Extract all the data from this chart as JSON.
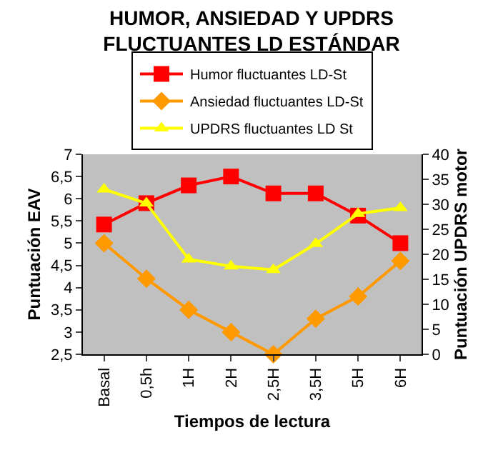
{
  "chart_data": {
    "type": "line",
    "title": "HUMOR, ANSIEDAD Y UPDRS\nFLUCTUANTES LD ESTÁNDAR",
    "xlabel": "Tiempos de lectura",
    "ylabel": "Puntuación EAV",
    "y2label": "Puntuación UPDRS motor",
    "categories": [
      "Basal",
      "0,5h",
      "1H",
      "2H",
      "2,5H",
      "3,5H",
      "5H",
      "6H"
    ],
    "series": [
      {
        "name": "Humor fluctuantes LD-St",
        "color": "#ff0000",
        "marker": "square",
        "values": [
          5.42,
          5.9,
          6.3,
          6.5,
          6.12,
          6.12,
          5.62,
          5.0
        ]
      },
      {
        "name": "Ansiedad fluctuantes LD-St",
        "color": "#ff9900",
        "marker": "diamond",
        "values": [
          5.0,
          4.2,
          3.5,
          3.0,
          2.5,
          3.3,
          3.8,
          4.6
        ]
      },
      {
        "name": "UPDRS fluctuantes LD St",
        "color": "#ffff00",
        "marker": "triangle",
        "axis": "y2",
        "values": [
          33.0,
          30.2,
          19.0,
          17.6,
          16.9,
          22.1,
          28.1,
          29.3
        ]
      }
    ],
    "ylim": [
      2.5,
      7
    ],
    "yticks": [
      {
        "value": 2.5,
        "label": "2,5"
      },
      3,
      {
        "value": 3.5,
        "label": "3,5"
      },
      4,
      {
        "value": 4.5,
        "label": "4,5"
      },
      5,
      {
        "value": 5.5,
        "label": "5,5"
      },
      6,
      {
        "value": 6.5,
        "label": "6,5"
      },
      7
    ],
    "y2lim": [
      0,
      40
    ],
    "y2ticks": [
      0,
      5,
      10,
      15,
      20,
      25,
      30,
      35,
      40
    ],
    "grid": false,
    "legend": "top"
  }
}
